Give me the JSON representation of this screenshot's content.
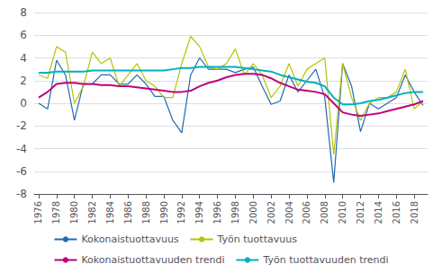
{
  "chart_data": {
    "type": "line",
    "x": [
      1976,
      1977,
      1978,
      1979,
      1980,
      1981,
      1982,
      1983,
      1984,
      1985,
      1986,
      1987,
      1988,
      1989,
      1990,
      1991,
      1992,
      1993,
      1994,
      1995,
      1996,
      1997,
      1998,
      1999,
      2000,
      2001,
      2002,
      2003,
      2004,
      2005,
      2006,
      2007,
      2008,
      2009,
      2010,
      2011,
      2012,
      2013,
      2014,
      2015,
      2016,
      2017,
      2018,
      2019
    ],
    "series": [
      {
        "name": "Kokonaistuottavuus",
        "color": "#1f6bb0",
        "values": [
          0.0,
          -0.5,
          3.8,
          2.5,
          -1.5,
          1.7,
          1.7,
          2.5,
          2.5,
          1.7,
          1.7,
          2.5,
          1.7,
          0.6,
          0.6,
          -1.5,
          -2.6,
          2.5,
          4.0,
          3.0,
          3.0,
          3.0,
          2.7,
          3.0,
          3.2,
          1.5,
          -0.1,
          0.2,
          2.5,
          1.0,
          2.0,
          3.0,
          0.5,
          -7.0,
          3.5,
          1.5,
          -2.5,
          0.0,
          -0.5,
          0.0,
          0.5,
          2.5,
          1.0,
          -0.2
        ]
      },
      {
        "name": "Työn tuottavuus",
        "color": "#b5c400",
        "values": [
          2.5,
          2.2,
          5.0,
          4.5,
          0.0,
          1.5,
          4.5,
          3.5,
          4.0,
          1.5,
          2.5,
          3.5,
          2.0,
          1.5,
          0.5,
          0.5,
          3.5,
          5.9,
          5.0,
          3.2,
          3.0,
          3.5,
          4.8,
          2.5,
          3.5,
          2.5,
          0.5,
          1.5,
          3.5,
          1.5,
          3.0,
          3.5,
          4.0,
          -4.5,
          3.5,
          0.5,
          -1.5,
          0.0,
          0.5,
          0.5,
          1.0,
          3.0,
          -0.5,
          0.2
        ]
      },
      {
        "name": "Kokonaistuottavuuden trendi",
        "color": "#c0007a",
        "values": [
          0.5,
          1.0,
          1.7,
          1.8,
          1.8,
          1.7,
          1.7,
          1.6,
          1.6,
          1.5,
          1.5,
          1.4,
          1.3,
          1.2,
          1.1,
          1.0,
          1.0,
          1.1,
          1.5,
          1.8,
          2.0,
          2.3,
          2.5,
          2.6,
          2.6,
          2.5,
          2.2,
          1.8,
          1.5,
          1.2,
          1.1,
          1.0,
          0.8,
          0.0,
          -0.8,
          -1.0,
          -1.1,
          -1.0,
          -0.9,
          -0.7,
          -0.5,
          -0.3,
          -0.1,
          0.2
        ]
      },
      {
        "name": "Työn tuottavuuden trendi",
        "color": "#00b0c0",
        "values": [
          2.7,
          2.7,
          2.8,
          2.8,
          2.8,
          2.8,
          2.9,
          2.9,
          2.9,
          2.9,
          2.9,
          2.9,
          2.9,
          2.9,
          2.9,
          3.0,
          3.1,
          3.1,
          3.2,
          3.2,
          3.2,
          3.2,
          3.2,
          3.1,
          3.0,
          2.9,
          2.8,
          2.5,
          2.3,
          2.1,
          1.9,
          1.8,
          1.5,
          0.5,
          -0.1,
          -0.1,
          0.0,
          0.2,
          0.3,
          0.5,
          0.7,
          0.9,
          1.0,
          1.0
        ]
      }
    ],
    "xlim": [
      1975.5,
      2019.5
    ],
    "xticks": [
      1976,
      1978,
      1980,
      1982,
      1984,
      1986,
      1988,
      1990,
      1992,
      1994,
      1996,
      1998,
      2000,
      2002,
      2004,
      2006,
      2008,
      2010,
      2012,
      2014,
      2016,
      2018
    ],
    "ylim": [
      -8,
      8
    ],
    "yticks": [
      -8,
      -6,
      -4,
      -2,
      0,
      2,
      4,
      6,
      8
    ],
    "grid": true,
    "legend": "bottom"
  }
}
